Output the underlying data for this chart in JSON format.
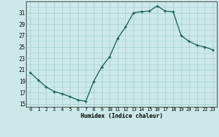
{
  "x": [
    0,
    1,
    2,
    3,
    4,
    5,
    6,
    7,
    8,
    9,
    10,
    11,
    12,
    13,
    14,
    15,
    16,
    17,
    18,
    19,
    20,
    21,
    22,
    23
  ],
  "y": [
    20.5,
    19.2,
    18.0,
    17.2,
    16.8,
    16.3,
    15.7,
    15.5,
    19.0,
    21.5,
    23.3,
    26.5,
    28.5,
    31.0,
    31.2,
    31.3,
    32.2,
    31.3,
    31.2,
    27.0,
    26.0,
    25.3,
    25.0,
    24.5
  ],
  "bg_color": "#cce8e8",
  "grid_color": "#aad4d4",
  "line_color": "#1a6060",
  "marker_color": "#1a6060",
  "xlabel": "Humidex (Indice chaleur)",
  "yticks": [
    15,
    17,
    19,
    21,
    23,
    25,
    27,
    29,
    31
  ],
  "xticks": [
    0,
    1,
    2,
    3,
    4,
    5,
    6,
    7,
    8,
    9,
    10,
    11,
    12,
    13,
    14,
    15,
    16,
    17,
    18,
    19,
    20,
    21,
    22,
    23
  ],
  "xlim": [
    -0.5,
    23.5
  ],
  "ylim": [
    14.5,
    33.0
  ]
}
